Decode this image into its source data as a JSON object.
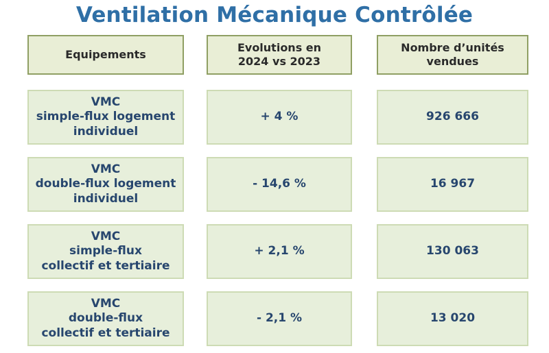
{
  "title": "Ventilation Mécanique Contrôlée",
  "chart_data": {
    "type": "table",
    "columns": [
      "Equipements",
      "Evolutions en\n2024 vs 2023",
      "Nombre d’unités\nvendues"
    ],
    "rows": [
      {
        "equipement": "VMC\nsimple-flux logement\nindividuel",
        "evolution": "+ 4 %",
        "unites": "926 666"
      },
      {
        "equipement": "VMC\ndouble-flux logement\nindividuel",
        "evolution": "- 14,6 %",
        "unites": "16 967"
      },
      {
        "equipement": "VMC\nsimple-flux\ncollectif et tertiaire",
        "evolution": "+ 2,1 %",
        "unites": "130 063"
      },
      {
        "equipement": "VMC\ndouble-flux\ncollectif et tertiaire",
        "evolution": "- 2,1 %",
        "unites": "13 020"
      }
    ]
  },
  "colors": {
    "title": "#2f6fa6",
    "header_bg": "#e9eed6",
    "header_border": "#8f9f63",
    "row_bg": "#e7efdb",
    "row_border": "#cddbb4",
    "row_text": "#27466e"
  }
}
